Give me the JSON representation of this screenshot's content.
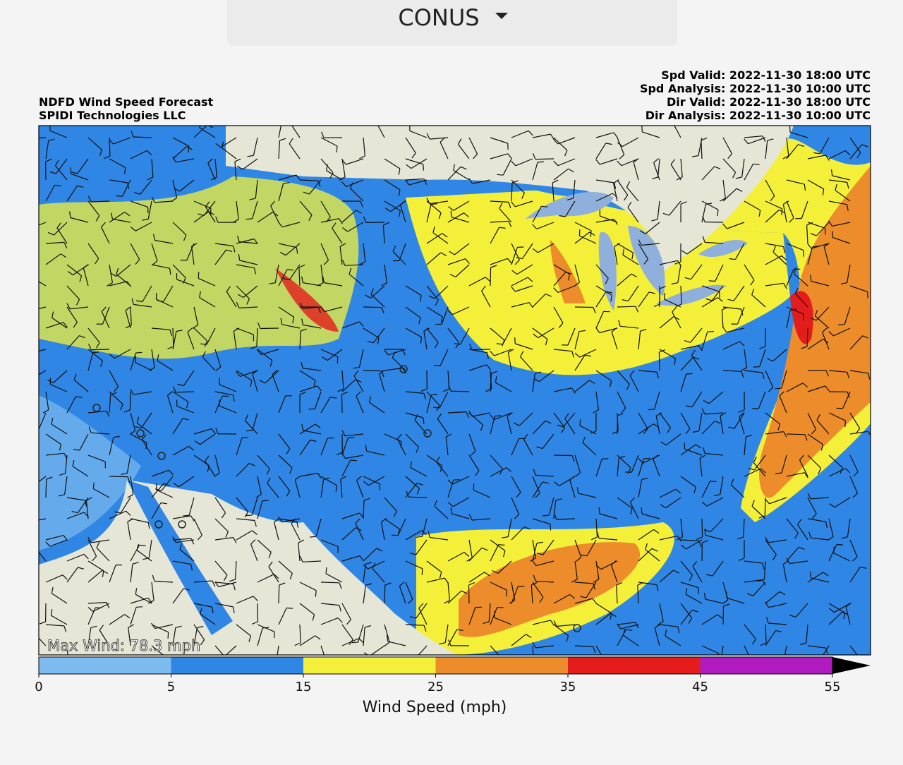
{
  "dropdown": {
    "label": "CONUS"
  },
  "header": {
    "left": [
      "NDFD Wind Speed Forecast",
      "SPIDI Technologies LLC"
    ],
    "right": [
      "Spd Valid: 2022-11-30 18:00 UTC",
      "Spd Analysis: 2022-11-30 10:00 UTC",
      "Dir Valid: 2022-11-30 18:00 UTC",
      "Dir Analysis: 2022-11-30 10:00 UTC"
    ]
  },
  "map": {
    "annotation": "Max Wind: 78.3 mph"
  },
  "colorbar": {
    "ticks": [
      0,
      5,
      15,
      25,
      35,
      45,
      55
    ],
    "colors": [
      "#7cbaf0",
      "#2f86e4",
      "#f4f03a",
      "#ec8c2a",
      "#e41c1c",
      "#b01bc0"
    ],
    "extend_color": "#000000",
    "label": "Wind Speed (mph)"
  }
}
